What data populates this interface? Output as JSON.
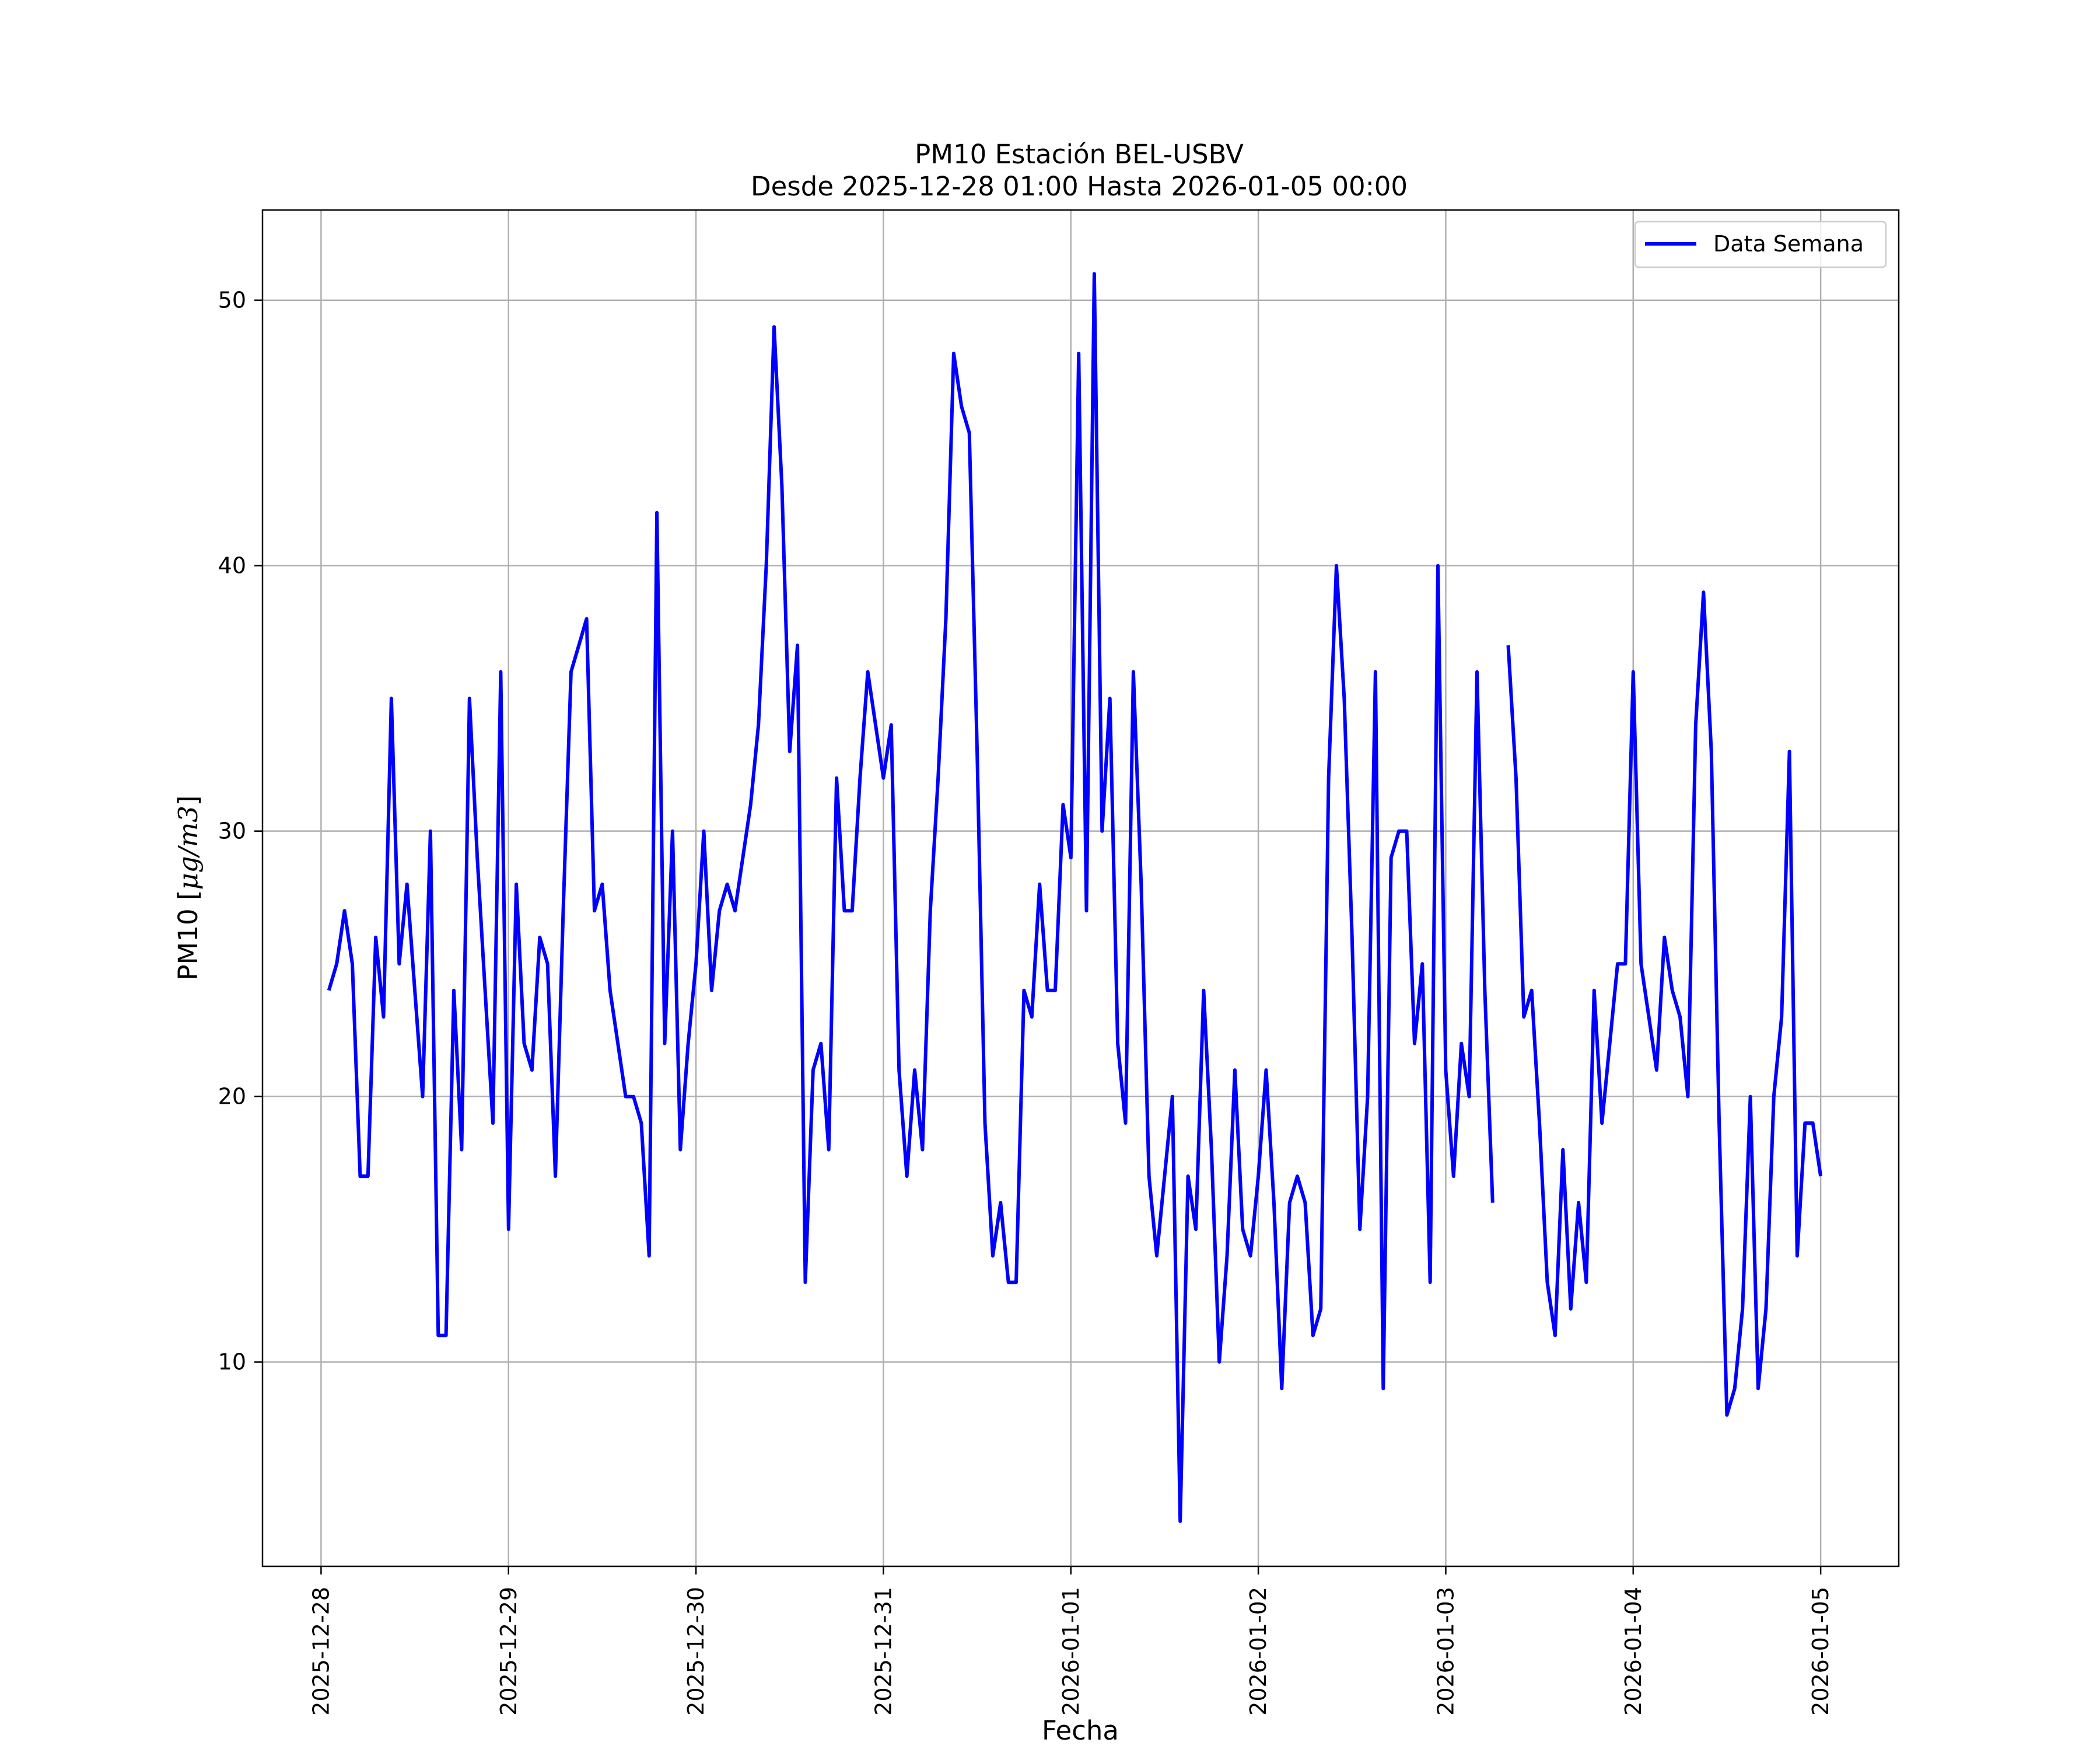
{
  "chart_data": {
    "type": "line",
    "title": "PM10 Estación BEL-USBV",
    "subtitle": "Desde 2025-12-28 01:00 Hasta 2026-01-05 00:00",
    "xlabel": "Fecha",
    "ylabel_text": "PM10 [",
    "ylabel_units": "μg/m3",
    "ylabel_close": "]",
    "xlim": [
      "2025-12-27 16:30",
      "2026-01-05 10:00"
    ],
    "ylim": [
      2.3,
      53.4
    ],
    "x_ticks": [
      "2025-12-28",
      "2025-12-29",
      "2025-12-30",
      "2025-12-31",
      "2026-01-01",
      "2026-01-02",
      "2026-01-03",
      "2026-01-04",
      "2026-01-05"
    ],
    "y_ticks": [
      10,
      20,
      30,
      40,
      50
    ],
    "grid": true,
    "legend_position": "top-right",
    "colors": {
      "series": "#0000ff",
      "grid": "#b0b0b0",
      "axes": "#000000"
    },
    "series": [
      {
        "name": "Data Semana",
        "x": [
          "2025-12-28 01:00",
          "2025-12-28 02:00",
          "2025-12-28 03:00",
          "2025-12-28 04:00",
          "2025-12-28 05:00",
          "2025-12-28 06:00",
          "2025-12-28 07:00",
          "2025-12-28 08:00",
          "2025-12-28 09:00",
          "2025-12-28 10:00",
          "2025-12-28 11:00",
          "2025-12-28 12:00",
          "2025-12-28 13:00",
          "2025-12-28 14:00",
          "2025-12-28 15:00",
          "2025-12-28 16:00",
          "2025-12-28 17:00",
          "2025-12-28 18:00",
          "2025-12-28 19:00",
          "2025-12-28 20:00",
          "2025-12-28 21:00",
          "2025-12-28 22:00",
          "2025-12-28 23:00",
          "2025-12-29 00:00",
          "2025-12-29 01:00",
          "2025-12-29 02:00",
          "2025-12-29 03:00",
          "2025-12-29 04:00",
          "2025-12-29 05:00",
          "2025-12-29 06:00",
          "2025-12-29 07:00",
          "2025-12-29 08:00",
          "2025-12-29 09:00",
          "2025-12-29 10:00",
          "2025-12-29 11:00",
          "2025-12-29 12:00",
          "2025-12-29 13:00",
          "2025-12-29 14:00",
          "2025-12-29 15:00",
          "2025-12-29 16:00",
          "2025-12-29 17:00",
          "2025-12-29 18:00",
          "2025-12-29 19:00",
          "2025-12-29 20:00",
          "2025-12-29 21:00",
          "2025-12-29 22:00",
          "2025-12-29 23:00",
          "2025-12-30 00:00",
          "2025-12-30 01:00",
          "2025-12-30 02:00",
          "2025-12-30 03:00",
          "2025-12-30 04:00",
          "2025-12-30 05:00",
          "2025-12-30 06:00",
          "2025-12-30 07:00",
          "2025-12-30 08:00",
          "2025-12-30 09:00",
          "2025-12-30 10:00",
          "2025-12-30 11:00",
          "2025-12-30 12:00",
          "2025-12-30 13:00",
          "2025-12-30 14:00",
          "2025-12-30 15:00",
          "2025-12-30 16:00",
          "2025-12-30 17:00",
          "2025-12-30 18:00",
          "2025-12-30 19:00",
          "2025-12-30 20:00",
          "2025-12-30 21:00",
          "2025-12-30 22:00",
          "2025-12-30 23:00",
          "2025-12-31 00:00",
          "2025-12-31 01:00",
          "2025-12-31 02:00",
          "2025-12-31 03:00",
          "2025-12-31 04:00",
          "2025-12-31 05:00",
          "2025-12-31 06:00",
          "2025-12-31 07:00",
          "2025-12-31 08:00",
          "2025-12-31 09:00",
          "2025-12-31 10:00",
          "2025-12-31 11:00",
          "2025-12-31 12:00",
          "2025-12-31 13:00",
          "2025-12-31 14:00",
          "2025-12-31 15:00",
          "2025-12-31 16:00",
          "2025-12-31 17:00",
          "2025-12-31 18:00",
          "2025-12-31 19:00",
          "2025-12-31 20:00",
          "2025-12-31 21:00",
          "2025-12-31 22:00",
          "2025-12-31 23:00",
          "2026-01-01 00:00",
          "2026-01-01 01:00",
          "2026-01-01 02:00",
          "2026-01-01 03:00",
          "2026-01-01 04:00",
          "2026-01-01 05:00",
          "2026-01-01 06:00",
          "2026-01-01 07:00",
          "2026-01-01 08:00",
          "2026-01-01 09:00",
          "2026-01-01 10:00",
          "2026-01-01 11:00",
          "2026-01-01 12:00",
          "2026-01-01 13:00",
          "2026-01-01 14:00",
          "2026-01-01 15:00",
          "2026-01-01 16:00",
          "2026-01-01 17:00",
          "2026-01-01 18:00",
          "2026-01-01 19:00",
          "2026-01-01 20:00",
          "2026-01-01 21:00",
          "2026-01-01 22:00",
          "2026-01-01 23:00",
          "2026-01-02 00:00",
          "2026-01-02 01:00",
          "2026-01-02 02:00",
          "2026-01-02 03:00",
          "2026-01-02 04:00",
          "2026-01-02 05:00",
          "2026-01-02 06:00",
          "2026-01-02 07:00",
          "2026-01-02 08:00",
          "2026-01-02 09:00",
          "2026-01-02 10:00",
          "2026-01-02 11:00",
          "2026-01-02 12:00",
          "2026-01-02 13:00",
          "2026-01-02 14:00",
          "2026-01-02 15:00",
          "2026-01-02 16:00",
          "2026-01-02 17:00",
          "2026-01-02 18:00",
          "2026-01-02 19:00",
          "2026-01-02 20:00",
          "2026-01-02 21:00",
          "2026-01-02 22:00",
          "2026-01-02 23:00",
          "2026-01-03 00:00",
          "2026-01-03 01:00",
          "2026-01-03 02:00",
          "2026-01-03 03:00",
          "2026-01-03 04:00",
          "2026-01-03 05:00",
          "2026-01-03 06:00",
          "2026-01-03 07:00",
          "2026-01-03 08:00",
          "2026-01-03 09:00",
          "2026-01-03 10:00",
          "2026-01-03 11:00",
          "2026-01-03 12:00",
          "2026-01-03 13:00",
          "2026-01-03 14:00",
          "2026-01-03 15:00",
          "2026-01-03 16:00",
          "2026-01-03 17:00",
          "2026-01-03 18:00",
          "2026-01-03 19:00",
          "2026-01-03 20:00",
          "2026-01-03 21:00",
          "2026-01-03 22:00",
          "2026-01-03 23:00",
          "2026-01-04 00:00",
          "2026-01-04 01:00",
          "2026-01-04 02:00",
          "2026-01-04 03:00",
          "2026-01-04 04:00",
          "2026-01-04 05:00",
          "2026-01-04 06:00",
          "2026-01-04 07:00",
          "2026-01-04 08:00",
          "2026-01-04 09:00",
          "2026-01-04 10:00",
          "2026-01-04 11:00",
          "2026-01-04 12:00",
          "2026-01-04 13:00",
          "2026-01-04 14:00",
          "2026-01-04 15:00",
          "2026-01-04 16:00",
          "2026-01-04 17:00",
          "2026-01-04 18:00",
          "2026-01-04 19:00",
          "2026-01-04 20:00",
          "2026-01-04 21:00",
          "2026-01-04 22:00",
          "2026-01-04 23:00",
          "2026-01-05 00:00"
        ],
        "y": [
          24,
          25,
          27,
          25,
          17,
          17,
          26,
          23,
          35,
          25,
          28,
          24,
          20,
          30,
          11,
          11,
          24,
          18,
          35,
          29,
          24,
          19,
          36,
          15,
          28,
          22,
          21,
          26,
          25,
          17,
          27,
          36,
          37,
          38,
          27,
          28,
          24,
          22,
          20,
          20,
          19,
          14,
          42,
          22,
          30,
          18,
          22,
          25,
          30,
          24,
          27,
          28,
          27,
          29,
          31,
          34,
          40,
          49,
          43,
          33,
          37,
          13,
          21,
          22,
          18,
          32,
          27,
          27,
          32,
          36,
          34,
          32,
          34,
          21,
          17,
          21,
          18,
          27,
          32,
          38,
          48,
          46,
          45,
          33,
          19,
          14,
          16,
          13,
          13,
          24,
          23,
          28,
          24,
          24,
          31,
          29,
          48,
          27,
          51,
          30,
          35,
          22,
          19,
          36,
          28,
          17,
          14,
          17,
          20,
          4,
          17,
          15,
          24,
          18,
          10,
          14,
          21,
          15,
          14,
          17,
          21,
          16,
          9,
          16,
          17,
          16,
          11,
          12,
          32,
          40,
          35,
          26,
          15,
          20,
          36,
          9,
          29,
          30,
          30,
          22,
          25,
          13,
          40,
          21,
          17,
          22,
          20,
          36,
          24,
          16,
          null,
          37,
          32,
          23,
          24,
          19,
          13,
          11,
          18,
          12,
          16,
          13,
          24,
          19,
          22,
          25,
          25,
          36,
          25,
          23,
          21,
          26,
          24,
          23,
          20,
          34,
          39,
          33,
          19,
          8,
          9,
          12,
          20,
          9,
          12,
          20,
          23,
          33,
          14,
          19,
          19,
          17
        ]
      }
    ]
  }
}
